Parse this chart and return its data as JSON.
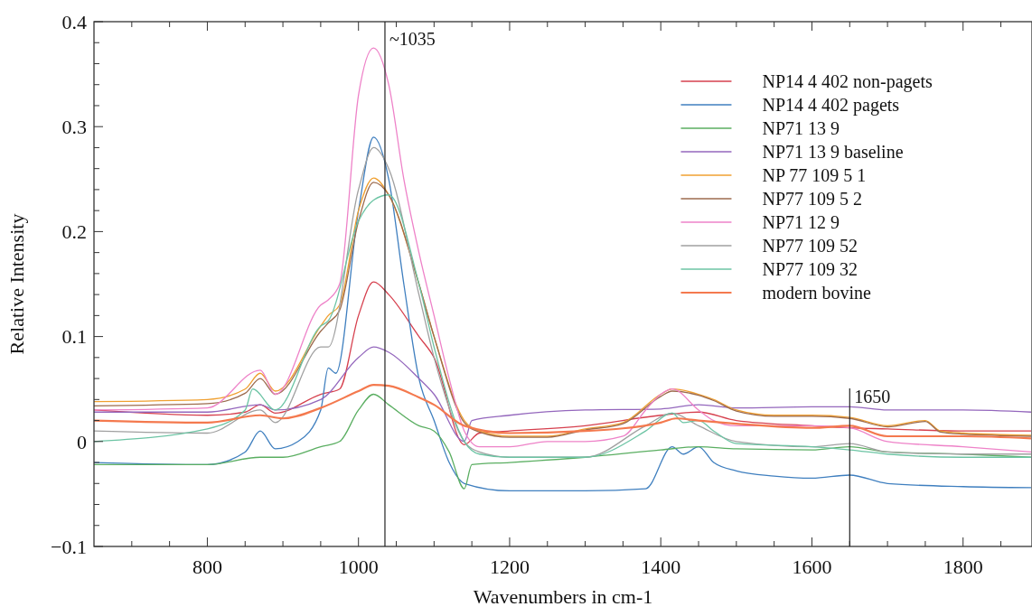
{
  "chart_data": {
    "type": "line",
    "xlabel": "Wavenumbers in cm-1",
    "ylabel": "Relative Intensity",
    "xlim": [
      650,
      1890
    ],
    "ylim": [
      -0.1,
      0.4
    ],
    "xticks": [
      {
        "value": 700,
        "label": null
      },
      {
        "value": 750,
        "label": null
      },
      800,
      {
        "value": 850,
        "label": null
      },
      {
        "value": 900,
        "label": null
      },
      {
        "value": 950,
        "label": null
      },
      1000,
      {
        "value": 1050,
        "label": null
      },
      {
        "value": 1100,
        "label": null
      },
      {
        "value": 1150,
        "label": null
      },
      1200,
      {
        "value": 1250,
        "label": null
      },
      {
        "value": 1300,
        "label": null
      },
      {
        "value": 1350,
        "label": null
      },
      1400,
      {
        "value": 1450,
        "label": null
      },
      {
        "value": 1500,
        "label": null
      },
      {
        "value": 1550,
        "label": null
      },
      1600,
      {
        "value": 1650,
        "label": null
      },
      {
        "value": 1700,
        "label": null
      },
      {
        "value": 1750,
        "label": null
      },
      1800,
      {
        "value": 1850,
        "label": null
      }
    ],
    "yticks": [
      -0.1,
      {
        "value": -0.08,
        "label": null
      },
      {
        "value": -0.06,
        "label": null
      },
      {
        "value": -0.04,
        "label": null
      },
      {
        "value": -0.02,
        "label": null
      },
      0,
      {
        "value": 0.02,
        "label": null
      },
      {
        "value": 0.04,
        "label": null
      },
      {
        "value": 0.06,
        "label": null
      },
      {
        "value": 0.08,
        "label": null
      },
      0.1,
      {
        "value": 0.12,
        "label": null
      },
      {
        "value": 0.14,
        "label": null
      },
      {
        "value": 0.16,
        "label": null
      },
      {
        "value": 0.18,
        "label": null
      },
      0.2,
      {
        "value": 0.22,
        "label": null
      },
      {
        "value": 0.24,
        "label": null
      },
      {
        "value": 0.26,
        "label": null
      },
      {
        "value": 0.28,
        "label": null
      },
      0.3,
      {
        "value": 0.32,
        "label": null
      },
      {
        "value": 0.34,
        "label": null
      },
      {
        "value": 0.36,
        "label": null
      },
      {
        "value": 0.38,
        "label": null
      },
      0.4
    ],
    "grid": false,
    "legend": "top right",
    "line_style": "solid",
    "marker": "none",
    "ref_lines": [
      {
        "axis": "x",
        "value": 1035,
        "label": "~1035",
        "color": "#222222"
      },
      {
        "axis": "x",
        "value": 1650,
        "label": "1650",
        "color": "#222222"
      }
    ],
    "series": [
      {
        "name": "NP14 4 402 non-pagets",
        "color": "#d6404e",
        "x": [
          650,
          800,
          850,
          870,
          890,
          950,
          975,
          1000,
          1020,
          1040,
          1080,
          1100,
          1140,
          1160,
          1200,
          1300,
          1400,
          1450,
          1500,
          1600,
          1650,
          1700,
          1800,
          1890
        ],
        "values": [
          0.03,
          0.025,
          0.028,
          0.035,
          0.027,
          0.045,
          0.05,
          0.12,
          0.152,
          0.14,
          0.1,
          0.08,
          -0.003,
          0.008,
          0.01,
          0.015,
          0.025,
          0.028,
          0.02,
          0.015,
          0.013,
          0.012,
          0.01,
          0.01
        ]
      },
      {
        "name": "NP14 4 402 pagets",
        "color": "#3f7fbf",
        "x": [
          650,
          800,
          850,
          870,
          890,
          920,
          950,
          960,
          970,
          1000,
          1020,
          1040,
          1060,
          1080,
          1100,
          1120,
          1140,
          1200,
          1300,
          1380,
          1415,
          1430,
          1450,
          1470,
          1500,
          1550,
          1600,
          1650,
          1700,
          1800,
          1890
        ],
        "values": [
          -0.02,
          -0.022,
          -0.01,
          0.01,
          -0.007,
          0.0,
          0.03,
          0.07,
          0.065,
          0.22,
          0.29,
          0.25,
          0.15,
          0.06,
          0.02,
          -0.02,
          -0.04,
          -0.047,
          -0.047,
          -0.045,
          -0.005,
          -0.012,
          -0.005,
          -0.02,
          -0.028,
          -0.033,
          -0.035,
          -0.032,
          -0.04,
          -0.043,
          -0.044
        ]
      },
      {
        "name": "NP71 13 9",
        "color": "#5aae61",
        "x": [
          650,
          800,
          870,
          900,
          950,
          975,
          1000,
          1020,
          1040,
          1080,
          1100,
          1120,
          1140,
          1150,
          1200,
          1300,
          1400,
          1450,
          1500,
          1600,
          1650,
          1700,
          1800,
          1890
        ],
        "values": [
          -0.022,
          -0.022,
          -0.015,
          -0.015,
          -0.005,
          0.0,
          0.03,
          0.045,
          0.035,
          0.015,
          0.01,
          -0.01,
          -0.045,
          -0.022,
          -0.02,
          -0.015,
          -0.008,
          -0.005,
          -0.007,
          -0.008,
          -0.005,
          -0.01,
          -0.012,
          -0.015
        ]
      },
      {
        "name": "NP71 13 9 baseline",
        "color": "#9467bd",
        "x": [
          650,
          800,
          870,
          890,
          950,
          1000,
          1020,
          1040,
          1080,
          1100,
          1140,
          1150,
          1200,
          1300,
          1400,
          1450,
          1500,
          1600,
          1650,
          1700,
          1800,
          1890
        ],
        "values": [
          0.028,
          0.028,
          0.035,
          0.03,
          0.04,
          0.08,
          0.09,
          0.085,
          0.06,
          0.045,
          0.0,
          0.02,
          0.025,
          0.03,
          0.031,
          0.035,
          0.032,
          0.033,
          0.033,
          0.03,
          0.03,
          0.028
        ]
      },
      {
        "name": "NP 77 109 5 1",
        "color": "#f0a030",
        "x": [
          650,
          800,
          850,
          870,
          890,
          950,
          960,
          975,
          1000,
          1020,
          1040,
          1080,
          1100,
          1140,
          1160,
          1200,
          1250,
          1300,
          1350,
          1400,
          1415,
          1450,
          1470,
          1500,
          1550,
          1600,
          1650,
          1700,
          1750,
          1770,
          1800,
          1890
        ],
        "values": [
          0.038,
          0.04,
          0.05,
          0.065,
          0.048,
          0.11,
          0.12,
          0.13,
          0.22,
          0.251,
          0.235,
          0.15,
          0.1,
          0.02,
          0.01,
          0.005,
          0.005,
          0.012,
          0.018,
          0.045,
          0.05,
          0.045,
          0.04,
          0.03,
          0.025,
          0.025,
          0.023,
          0.015,
          0.02,
          0.01,
          0.008,
          0.006
        ]
      },
      {
        "name": "NP77 109 5 2",
        "color": "#9c6b4e",
        "x": [
          650,
          800,
          850,
          870,
          890,
          950,
          960,
          975,
          1000,
          1020,
          1040,
          1080,
          1100,
          1140,
          1160,
          1200,
          1250,
          1300,
          1350,
          1400,
          1415,
          1450,
          1470,
          1500,
          1550,
          1600,
          1650,
          1700,
          1750,
          1770,
          1800,
          1890
        ],
        "values": [
          0.034,
          0.036,
          0.046,
          0.06,
          0.045,
          0.105,
          0.113,
          0.125,
          0.21,
          0.247,
          0.235,
          0.15,
          0.1,
          0.018,
          0.009,
          0.004,
          0.004,
          0.011,
          0.017,
          0.043,
          0.048,
          0.044,
          0.039,
          0.029,
          0.024,
          0.024,
          0.022,
          0.014,
          0.019,
          0.009,
          0.007,
          0.005
        ]
      },
      {
        "name": "NP71 12 9",
        "color": "#ee82c8",
        "x": [
          650,
          800,
          870,
          890,
          950,
          960,
          975,
          1000,
          1020,
          1040,
          1060,
          1080,
          1100,
          1120,
          1140,
          1160,
          1200,
          1250,
          1300,
          1350,
          1380,
          1400,
          1415,
          1450,
          1470,
          1500,
          1600,
          1650,
          1700,
          1800,
          1890
        ],
        "values": [
          0.03,
          0.032,
          0.068,
          0.045,
          0.13,
          0.135,
          0.15,
          0.33,
          0.375,
          0.34,
          0.25,
          0.18,
          0.12,
          0.06,
          0.01,
          -0.005,
          -0.005,
          0.0,
          0.0,
          0.005,
          0.03,
          0.045,
          0.05,
          0.03,
          0.02,
          0.015,
          0.015,
          0.013,
          0.0,
          -0.005,
          -0.01
        ]
      },
      {
        "name": "NP77 109 52",
        "color": "#a0a0a0",
        "x": [
          650,
          800,
          870,
          890,
          950,
          960,
          1000,
          1020,
          1040,
          1080,
          1100,
          1140,
          1160,
          1200,
          1300,
          1380,
          1415,
          1450,
          1500,
          1600,
          1650,
          1700,
          1800,
          1890
        ],
        "values": [
          0.01,
          0.008,
          0.03,
          0.018,
          0.09,
          0.09,
          0.24,
          0.28,
          0.26,
          0.14,
          0.08,
          0.0,
          -0.01,
          -0.015,
          -0.015,
          0.015,
          0.027,
          0.015,
          0.0,
          -0.005,
          -0.002,
          -0.01,
          -0.012,
          -0.012
        ]
      },
      {
        "name": "NP77 109 32",
        "color": "#6cc4a4",
        "x": [
          650,
          800,
          850,
          860,
          890,
          950,
          960,
          1000,
          1020,
          1040,
          1080,
          1100,
          1140,
          1160,
          1200,
          1300,
          1380,
          1415,
          1430,
          1450,
          1470,
          1500,
          1600,
          1650,
          1700,
          1800,
          1890
        ],
        "values": [
          0.0,
          0.012,
          0.03,
          0.05,
          0.03,
          0.11,
          0.115,
          0.21,
          0.23,
          0.235,
          0.15,
          0.09,
          0.0,
          -0.012,
          -0.015,
          -0.015,
          0.01,
          0.027,
          0.018,
          0.02,
          0.01,
          -0.002,
          -0.005,
          -0.008,
          -0.012,
          -0.015,
          -0.015
        ]
      },
      {
        "name": "modern bovine",
        "color": "#f4794e",
        "x": [
          650,
          800,
          870,
          900,
          950,
          1000,
          1020,
          1040,
          1080,
          1100,
          1140,
          1200,
          1300,
          1400,
          1420,
          1450,
          1500,
          1600,
          1650,
          1700,
          1800,
          1890
        ],
        "values": [
          0.02,
          0.018,
          0.025,
          0.022,
          0.032,
          0.048,
          0.054,
          0.053,
          0.042,
          0.035,
          0.015,
          0.008,
          0.01,
          0.018,
          0.022,
          0.02,
          0.017,
          0.013,
          0.015,
          0.005,
          0.005,
          0.003
        ]
      }
    ]
  }
}
